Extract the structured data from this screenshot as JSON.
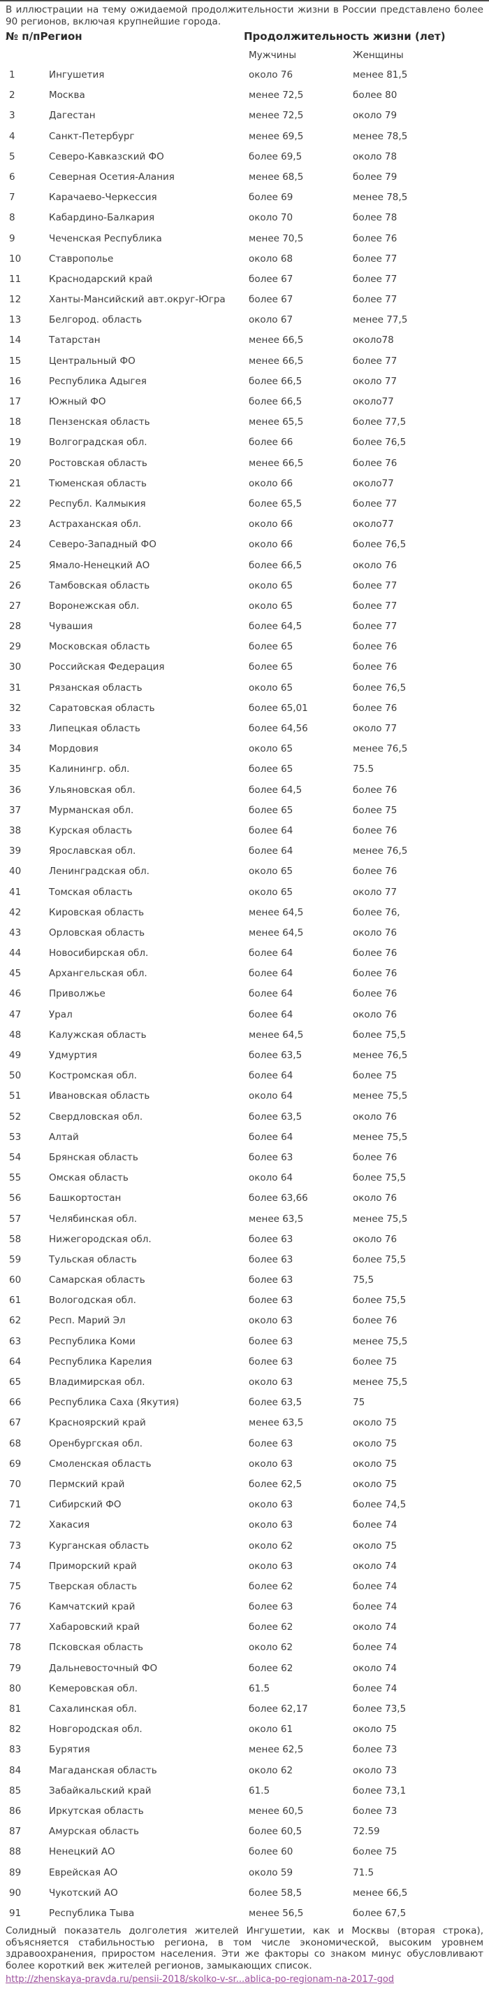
{
  "intro": "В иллюстрации на тему ожидаемой продолжительности жизни в России представлено более 90 регионов, включая крупнейшие города.",
  "table": {
    "header": {
      "num_region": "№ п/пРегион",
      "lifespan": "Продолжительность жизни (лет)",
      "men": "Мужчины",
      "women": "Женщины"
    },
    "rows": [
      [
        1,
        "Ингушетия",
        "около 76",
        "менее 81,5"
      ],
      [
        2,
        "Москва",
        "менее 72,5",
        "более 80"
      ],
      [
        3,
        "Дагестан",
        "менее 72,5",
        "около 79"
      ],
      [
        4,
        "Санкт-Петербург",
        "менее 69,5",
        "менее 78,5"
      ],
      [
        5,
        "Северо-Кавказский ФО",
        "более 69,5",
        "около 78"
      ],
      [
        6,
        "Северная Осетия-Алания",
        "менее 68,5",
        "более 79"
      ],
      [
        7,
        "Карачаево-Черкессия",
        "более 69",
        "менее 78,5"
      ],
      [
        8,
        "Кабардино-Балкария",
        "около 70",
        "более 78"
      ],
      [
        9,
        "Чеченская Республика",
        "менее 70,5",
        "более 76"
      ],
      [
        10,
        "Ставрополье",
        "около 68",
        "более 77"
      ],
      [
        11,
        "Краснодарский край",
        "более 67",
        "более 77"
      ],
      [
        12,
        "Ханты-Мансийский авт.округ-Югра",
        "более 67",
        "более 77"
      ],
      [
        13,
        "Белгород. область",
        "около 67",
        "менее 77,5"
      ],
      [
        14,
        "Татарстан",
        "менее 66,5",
        "около78"
      ],
      [
        15,
        "Центральный ФО",
        "менее 66,5",
        "более 77"
      ],
      [
        16,
        "Республика Адыгея",
        "более 66,5",
        "около 77"
      ],
      [
        17,
        "Южный ФО",
        "более 66,5",
        "около77"
      ],
      [
        18,
        "Пензенская область",
        "менее 65,5",
        "более 77,5"
      ],
      [
        19,
        "Волгоградская обл.",
        "более 66",
        "более 76,5"
      ],
      [
        20,
        "Ростовская область",
        "менее 66,5",
        "более 76"
      ],
      [
        21,
        "Тюменская область",
        "около 66",
        "около77"
      ],
      [
        22,
        "Республ. Калмыкия",
        "более 65,5",
        "более 77"
      ],
      [
        23,
        "Астраханская обл.",
        "около 66",
        "около77"
      ],
      [
        24,
        "Северо-Западный ФО",
        "около 66",
        "более 76,5"
      ],
      [
        25,
        "Ямало-Ненецкий АО",
        "более 66,5",
        "около 76"
      ],
      [
        26,
        "Тамбовская область",
        "около 65",
        "более 77"
      ],
      [
        27,
        "Воронежская обл.",
        "около 65",
        "более 77"
      ],
      [
        28,
        "Чувашия",
        "более 64,5",
        "более 77"
      ],
      [
        29,
        "Московская область",
        "более 65",
        "более 76"
      ],
      [
        30,
        "Российская Федерация",
        "более 65",
        "более 76"
      ],
      [
        31,
        "Рязанская область",
        "около 65",
        "более 76,5"
      ],
      [
        32,
        "Саратовская область",
        "более 65,01",
        "более 76"
      ],
      [
        33,
        "Липецкая область",
        "более 64,56",
        "около 77"
      ],
      [
        34,
        "Мордовия",
        "около 65",
        "менее 76,5"
      ],
      [
        35,
        "Калинингр. обл.",
        "более 65",
        "75.5"
      ],
      [
        36,
        "Ульяновская обл.",
        "более 64,5",
        "более 76"
      ],
      [
        37,
        "Мурманская обл.",
        "более 65",
        "более 75"
      ],
      [
        38,
        "Курская область",
        "более 64",
        "более 76"
      ],
      [
        39,
        "Ярославская обл.",
        "более 64",
        "менее 76,5"
      ],
      [
        40,
        "Ленинградская обл.",
        "около 65",
        "более 76"
      ],
      [
        41,
        "Томская область",
        "около 65",
        "около 77"
      ],
      [
        42,
        "Кировская область",
        "менее 64,5",
        "более 76,"
      ],
      [
        43,
        "Орловская область",
        "менее 64,5",
        "около 76"
      ],
      [
        44,
        "Новосибирская обл.",
        "более 64",
        "более 76"
      ],
      [
        45,
        "Архангельская обл.",
        "более 64",
        "более 76"
      ],
      [
        46,
        "Приволжье",
        "более 64",
        "более 76"
      ],
      [
        47,
        "Урал",
        "более 64",
        "около 76"
      ],
      [
        48,
        "Калужская область",
        "менее 64,5",
        "более 75,5"
      ],
      [
        49,
        "Удмуртия",
        "более 63,5",
        "менее 76,5"
      ],
      [
        50,
        "Костромская обл.",
        "более 64",
        "более 75"
      ],
      [
        51,
        "Ивановская область",
        "около 64",
        "менее 75,5"
      ],
      [
        52,
        "Свердловская обл.",
        "более 63,5",
        "около 76"
      ],
      [
        53,
        "Алтай",
        "более 64",
        "менее 75,5"
      ],
      [
        54,
        "Брянская область",
        "более 63",
        "более 76"
      ],
      [
        55,
        "Омская область",
        "около 64",
        "более 75,5"
      ],
      [
        56,
        "Башкортостан",
        "более 63,66",
        "около 76"
      ],
      [
        57,
        "Челябинская обл.",
        "менее 63,5",
        "менее 75,5"
      ],
      [
        58,
        "Нижегородская обл.",
        "более 63",
        "около 76"
      ],
      [
        59,
        "Тульская область",
        "более 63",
        "более 75,5"
      ],
      [
        60,
        "Самарская область",
        "более 63",
        "75,5"
      ],
      [
        61,
        "Вологодская обл.",
        "более 63",
        "более 75,5"
      ],
      [
        62,
        "Респ. Марий Эл",
        "около 63",
        "более 76"
      ],
      [
        63,
        "Республика Коми",
        "более 63",
        "менее 75,5"
      ],
      [
        64,
        "Республика Карелия",
        "более 63",
        "более 75"
      ],
      [
        65,
        "Владимирская обл.",
        "около 63",
        "менее 75,5"
      ],
      [
        66,
        "Республика Саха (Якутия)",
        "более 63,5",
        "75"
      ],
      [
        67,
        "Красноярский край",
        "менее 63,5",
        "около 75"
      ],
      [
        68,
        "Оренбургская обл.",
        "более 63",
        "около 75"
      ],
      [
        69,
        "Смоленская область",
        "около 63",
        "около 75"
      ],
      [
        70,
        "Пермский край",
        "более 62,5",
        "около 75"
      ],
      [
        71,
        "Сибирский ФО",
        "около 63",
        "более 74,5"
      ],
      [
        72,
        "Хакасия",
        "около 63",
        "более 74"
      ],
      [
        73,
        "Курганская область",
        "около 62",
        "около 75"
      ],
      [
        74,
        "Приморский край",
        "около 63",
        "около 74"
      ],
      [
        75,
        "Тверская область",
        "более 62",
        "более 74"
      ],
      [
        76,
        "Камчатский край",
        "более 63",
        "более 74"
      ],
      [
        77,
        "Хабаровский край",
        "более 62",
        "около 74"
      ],
      [
        78,
        "Псковская область",
        "около 62",
        "более 74"
      ],
      [
        79,
        "Дальневосточный ФО",
        "более 62",
        "около 74"
      ],
      [
        80,
        "Кемеровская обл.",
        "61.5",
        "более 74"
      ],
      [
        81,
        "Сахалинская обл.",
        "более 62,17",
        "более 73,5"
      ],
      [
        82,
        "Новгородская обл.",
        "около 61",
        "около 75"
      ],
      [
        83,
        "Бурятия",
        "менее 62,5",
        "более 73"
      ],
      [
        84,
        "Магаданская область",
        "около 62",
        "около 73"
      ],
      [
        85,
        "Забайкальский край",
        "61.5",
        "более 73,1"
      ],
      [
        86,
        "Иркутская область",
        "менее 60,5",
        "более 73"
      ],
      [
        87,
        "Амурская область",
        "более 60,5",
        "72.59"
      ],
      [
        88,
        "Ненецкий АО",
        "более 60",
        "более 75"
      ],
      [
        89,
        "Еврейская АО",
        "около 59",
        "71.5"
      ],
      [
        90,
        "Чукотский АО",
        "более 58,5",
        "менее 66,5"
      ],
      [
        91,
        "Республика Тыва",
        "менее 56,5",
        "более 67,5"
      ]
    ]
  },
  "footer": "Солидный показатель долголетия жителей Ингушетии, как и Москвы (вторая строка), объясняется стабильностью региона, в том числе экономической, высоким уровнем здравоохранения, приростом населения. Эти же факторы со знаком минус обусловливают более короткий век жителей регионов, замыкающих список.",
  "link": {
    "text": "http://zhenskaya-pravda.ru/pensii-2018/skolko-v-sr...ablica-po-regionam-na-2017-god"
  },
  "colors": {
    "link": "#9c4f9c",
    "text": "#3d3d3d",
    "top_bar": "#4a4a4a"
  }
}
